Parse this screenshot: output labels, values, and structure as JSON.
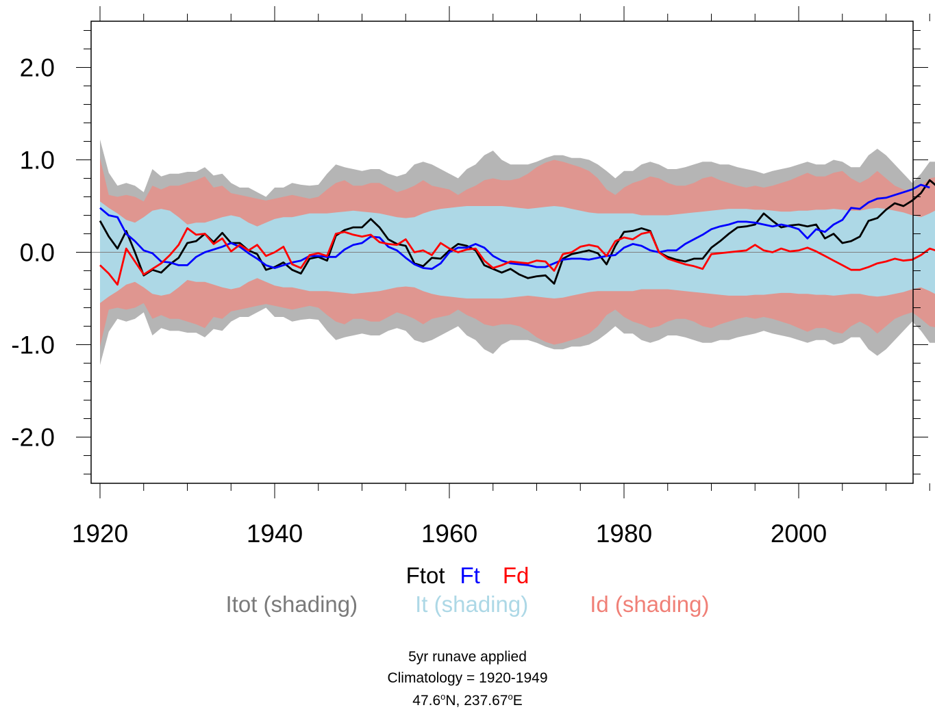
{
  "chart_data": {
    "type": "line",
    "x_start": 1920,
    "x_end": 2012,
    "xlim": [
      1920,
      2015
    ],
    "ylim": [
      -2.5,
      2.5
    ],
    "xticks": [
      1920,
      1940,
      1960,
      1980,
      2000
    ],
    "xtick_labels": [
      "1920",
      "1940",
      "1960",
      "1980",
      "2000"
    ],
    "yticks": [
      2.0,
      1.0,
      0.0,
      -1.0,
      -2.0
    ],
    "ytick_labels": [
      "2.0",
      "1.0",
      "0.0",
      "-1.0",
      "-2.0"
    ],
    "zero_line": 0.0,
    "series": [
      {
        "name": "Ftot",
        "color": "#000000",
        "values": [
          0.34,
          0.17,
          0.04,
          0.23,
          0.0,
          -0.25,
          -0.19,
          -0.22,
          -0.13,
          -0.06,
          0.1,
          0.12,
          0.2,
          0.11,
          0.21,
          0.1,
          0.1,
          0.02,
          -0.02,
          -0.19,
          -0.16,
          -0.11,
          -0.19,
          -0.23,
          -0.07,
          -0.05,
          -0.09,
          0.18,
          0.24,
          0.27,
          0.27,
          0.36,
          0.27,
          0.14,
          0.09,
          0.07,
          -0.12,
          -0.15,
          -0.06,
          -0.07,
          0.02,
          0.09,
          0.07,
          0.02,
          -0.14,
          -0.18,
          -0.22,
          -0.18,
          -0.24,
          -0.28,
          -0.26,
          -0.25,
          -0.34,
          -0.07,
          -0.02,
          0.0,
          0.02,
          -0.01,
          -0.13,
          0.07,
          0.22,
          0.23,
          0.26,
          0.23,
          0.0,
          -0.05,
          -0.08,
          -0.1,
          -0.07,
          -0.07,
          0.05,
          0.12,
          0.2,
          0.27,
          0.28,
          0.3,
          0.42,
          0.34,
          0.27,
          0.29,
          0.3,
          0.28,
          0.3,
          0.15,
          0.2,
          0.1,
          0.12,
          0.17,
          0.34,
          0.37,
          0.46,
          0.53,
          0.5,
          0.56,
          0.64,
          0.78,
          0.7
        ]
      },
      {
        "name": "Ft",
        "color": "#0000ff",
        "values": [
          0.48,
          0.4,
          0.38,
          0.2,
          0.12,
          0.02,
          -0.01,
          -0.1,
          -0.11,
          -0.14,
          -0.14,
          -0.05,
          0.0,
          0.03,
          0.06,
          0.1,
          0.06,
          -0.01,
          -0.07,
          -0.14,
          -0.17,
          -0.14,
          -0.11,
          -0.09,
          -0.04,
          -0.04,
          -0.05,
          -0.05,
          0.03,
          0.08,
          0.1,
          0.17,
          0.16,
          0.06,
          0.02,
          -0.06,
          -0.13,
          -0.17,
          -0.18,
          -0.12,
          0.0,
          0.05,
          0.05,
          0.09,
          0.05,
          -0.04,
          -0.09,
          -0.12,
          -0.13,
          -0.14,
          -0.16,
          -0.16,
          -0.12,
          -0.08,
          -0.07,
          -0.07,
          -0.08,
          -0.06,
          -0.04,
          -0.03,
          0.05,
          0.09,
          0.07,
          0.02,
          0.0,
          0.02,
          0.02,
          0.09,
          0.14,
          0.19,
          0.25,
          0.28,
          0.3,
          0.33,
          0.33,
          0.32,
          0.3,
          0.28,
          0.3,
          0.28,
          0.25,
          0.15,
          0.25,
          0.22,
          0.3,
          0.35,
          0.48,
          0.47,
          0.54,
          0.58,
          0.59,
          0.62,
          0.65,
          0.68,
          0.73,
          0.7
        ]
      },
      {
        "name": "Fd",
        "color": "#ff0000",
        "values": [
          -0.14,
          -0.23,
          -0.35,
          0.04,
          -0.1,
          -0.24,
          -0.18,
          -0.12,
          -0.03,
          0.08,
          0.26,
          0.19,
          0.2,
          0.09,
          0.15,
          0.01,
          0.08,
          0.02,
          0.08,
          -0.04,
          0.0,
          0.06,
          -0.13,
          -0.17,
          -0.03,
          -0.01,
          -0.04,
          0.2,
          0.22,
          0.19,
          0.17,
          0.19,
          0.11,
          0.09,
          0.08,
          0.14,
          0.0,
          0.02,
          -0.03,
          0.1,
          0.04,
          0.0,
          0.03,
          0.04,
          -0.09,
          -0.17,
          -0.14,
          -0.1,
          -0.11,
          -0.12,
          -0.09,
          -0.1,
          -0.2,
          -0.02,
          0.0,
          0.06,
          0.08,
          0.06,
          -0.04,
          0.12,
          0.16,
          0.14,
          0.2,
          0.22,
          0.0,
          -0.07,
          -0.1,
          -0.13,
          -0.15,
          -0.18,
          -0.02,
          -0.01,
          0.0,
          0.01,
          0.02,
          0.08,
          0.02,
          0.0,
          0.04,
          0.01,
          0.02,
          0.05,
          0.01,
          -0.04,
          -0.09,
          -0.14,
          -0.19,
          -0.19,
          -0.16,
          -0.12,
          -0.1,
          -0.07,
          -0.09,
          -0.08,
          -0.03,
          0.04,
          0.01
        ]
      }
    ],
    "bands": [
      {
        "name": "Itot (shading)",
        "color": "#b5b5b5",
        "upper": [
          1.22,
          0.86,
          0.72,
          0.75,
          0.72,
          0.65,
          0.9,
          0.82,
          0.85,
          0.85,
          0.87,
          0.87,
          0.92,
          0.83,
          0.85,
          0.75,
          0.7,
          0.7,
          0.65,
          0.6,
          0.7,
          0.7,
          0.75,
          0.73,
          0.72,
          0.73,
          0.85,
          0.95,
          0.92,
          0.9,
          0.88,
          0.9,
          0.9,
          0.85,
          0.82,
          0.85,
          0.95,
          0.98,
          0.95,
          0.9,
          0.85,
          0.8,
          0.9,
          0.95,
          1.05,
          1.1,
          1.0,
          0.95,
          0.95,
          0.95,
          0.98,
          1.02,
          1.05,
          1.05,
          1.02,
          1.02,
          1.0,
          0.95,
          0.88,
          0.8,
          0.88,
          0.88,
          0.95,
          0.98,
          0.95,
          0.9,
          0.9,
          0.92,
          0.95,
          0.98,
          0.98,
          0.95,
          0.95,
          0.92,
          0.9,
          0.88,
          0.85,
          0.88,
          0.9,
          0.92,
          0.95,
          0.98,
          0.95,
          0.95,
          1.0,
          0.98,
          0.92,
          0.92,
          1.05,
          1.12,
          1.05,
          0.95,
          0.85,
          0.75,
          0.85,
          0.98,
          0.98
        ],
        "lower": [
          -1.22,
          -0.86,
          -0.72,
          -0.75,
          -0.72,
          -0.65,
          -0.9,
          -0.82,
          -0.85,
          -0.85,
          -0.87,
          -0.87,
          -0.92,
          -0.83,
          -0.85,
          -0.75,
          -0.7,
          -0.7,
          -0.65,
          -0.6,
          -0.7,
          -0.7,
          -0.75,
          -0.73,
          -0.72,
          -0.73,
          -0.85,
          -0.95,
          -0.92,
          -0.9,
          -0.88,
          -0.9,
          -0.9,
          -0.85,
          -0.82,
          -0.85,
          -0.95,
          -0.98,
          -0.95,
          -0.9,
          -0.85,
          -0.8,
          -0.9,
          -0.95,
          -1.05,
          -1.1,
          -1.0,
          -0.95,
          -0.95,
          -0.95,
          -0.98,
          -1.02,
          -1.05,
          -1.05,
          -1.02,
          -1.02,
          -1.0,
          -0.95,
          -0.88,
          -0.8,
          -0.88,
          -0.88,
          -0.95,
          -0.98,
          -0.95,
          -0.9,
          -0.9,
          -0.92,
          -0.95,
          -0.98,
          -0.98,
          -0.95,
          -0.95,
          -0.92,
          -0.9,
          -0.88,
          -0.85,
          -0.88,
          -0.9,
          -0.92,
          -0.95,
          -0.98,
          -0.95,
          -0.95,
          -1.0,
          -0.98,
          -0.92,
          -0.92,
          -1.05,
          -1.12,
          -1.05,
          -0.95,
          -0.85,
          -0.75,
          -0.85,
          -0.98,
          -0.98
        ]
      },
      {
        "name": "Id (shading)",
        "color": "#df9690",
        "upper": [
          1.02,
          0.62,
          0.6,
          0.62,
          0.6,
          0.55,
          0.72,
          0.68,
          0.72,
          0.72,
          0.75,
          0.78,
          0.82,
          0.7,
          0.72,
          0.64,
          0.62,
          0.6,
          0.58,
          0.56,
          0.58,
          0.6,
          0.62,
          0.6,
          0.58,
          0.6,
          0.68,
          0.75,
          0.78,
          0.72,
          0.72,
          0.75,
          0.75,
          0.7,
          0.65,
          0.68,
          0.72,
          0.78,
          0.72,
          0.7,
          0.68,
          0.62,
          0.68,
          0.72,
          0.78,
          0.8,
          0.78,
          0.78,
          0.8,
          0.85,
          0.92,
          0.97,
          1.0,
          0.98,
          0.95,
          0.92,
          0.88,
          0.8,
          0.68,
          0.62,
          0.7,
          0.75,
          0.78,
          0.82,
          0.8,
          0.75,
          0.72,
          0.72,
          0.75,
          0.8,
          0.82,
          0.78,
          0.75,
          0.72,
          0.7,
          0.72,
          0.7,
          0.72,
          0.75,
          0.78,
          0.82,
          0.86,
          0.82,
          0.82,
          0.86,
          0.88,
          0.8,
          0.75,
          0.8,
          0.88,
          0.8,
          0.72,
          0.68,
          0.65,
          0.72,
          0.8,
          0.82
        ],
        "lower": [
          -1.02,
          -0.62,
          -0.6,
          -0.62,
          -0.6,
          -0.55,
          -0.72,
          -0.68,
          -0.72,
          -0.72,
          -0.75,
          -0.78,
          -0.82,
          -0.7,
          -0.72,
          -0.64,
          -0.62,
          -0.6,
          -0.58,
          -0.56,
          -0.58,
          -0.6,
          -0.62,
          -0.6,
          -0.58,
          -0.6,
          -0.68,
          -0.75,
          -0.78,
          -0.72,
          -0.72,
          -0.75,
          -0.75,
          -0.7,
          -0.65,
          -0.68,
          -0.72,
          -0.78,
          -0.72,
          -0.7,
          -0.68,
          -0.62,
          -0.68,
          -0.72,
          -0.78,
          -0.8,
          -0.78,
          -0.78,
          -0.8,
          -0.85,
          -0.92,
          -0.97,
          -1.0,
          -0.98,
          -0.95,
          -0.92,
          -0.88,
          -0.8,
          -0.68,
          -0.62,
          -0.7,
          -0.75,
          -0.78,
          -0.82,
          -0.8,
          -0.75,
          -0.72,
          -0.72,
          -0.75,
          -0.8,
          -0.82,
          -0.78,
          -0.75,
          -0.72,
          -0.7,
          -0.72,
          -0.7,
          -0.72,
          -0.75,
          -0.78,
          -0.82,
          -0.86,
          -0.82,
          -0.82,
          -0.86,
          -0.88,
          -0.8,
          -0.75,
          -0.8,
          -0.88,
          -0.8,
          -0.72,
          -0.68,
          -0.65,
          -0.72,
          -0.8,
          -0.82
        ]
      },
      {
        "name": "It (shading)",
        "color": "#add8e6",
        "upper": [
          0.55,
          0.48,
          0.42,
          0.35,
          0.32,
          0.38,
          0.45,
          0.47,
          0.45,
          0.38,
          0.3,
          0.32,
          0.32,
          0.35,
          0.38,
          0.4,
          0.38,
          0.32,
          0.28,
          0.32,
          0.36,
          0.38,
          0.38,
          0.4,
          0.42,
          0.42,
          0.42,
          0.43,
          0.44,
          0.45,
          0.44,
          0.43,
          0.42,
          0.4,
          0.38,
          0.37,
          0.38,
          0.42,
          0.45,
          0.47,
          0.48,
          0.49,
          0.5,
          0.5,
          0.5,
          0.5,
          0.5,
          0.49,
          0.48,
          0.47,
          0.48,
          0.49,
          0.5,
          0.49,
          0.47,
          0.45,
          0.43,
          0.42,
          0.42,
          0.42,
          0.42,
          0.42,
          0.4,
          0.4,
          0.4,
          0.4,
          0.41,
          0.42,
          0.43,
          0.44,
          0.45,
          0.46,
          0.47,
          0.47,
          0.47,
          0.46,
          0.46,
          0.45,
          0.44,
          0.44,
          0.45,
          0.45,
          0.46,
          0.46,
          0.47,
          0.46,
          0.45,
          0.45,
          0.47,
          0.48,
          0.47,
          0.45,
          0.43,
          0.4,
          0.38,
          0.42,
          0.47
        ],
        "lower": [
          -0.55,
          -0.48,
          -0.42,
          -0.35,
          -0.32,
          -0.38,
          -0.45,
          -0.47,
          -0.45,
          -0.38,
          -0.3,
          -0.32,
          -0.32,
          -0.35,
          -0.38,
          -0.4,
          -0.38,
          -0.32,
          -0.28,
          -0.32,
          -0.36,
          -0.38,
          -0.38,
          -0.4,
          -0.42,
          -0.42,
          -0.42,
          -0.43,
          -0.44,
          -0.45,
          -0.44,
          -0.43,
          -0.42,
          -0.4,
          -0.38,
          -0.37,
          -0.38,
          -0.42,
          -0.45,
          -0.47,
          -0.48,
          -0.49,
          -0.5,
          -0.5,
          -0.5,
          -0.5,
          -0.5,
          -0.49,
          -0.48,
          -0.47,
          -0.48,
          -0.49,
          -0.5,
          -0.49,
          -0.47,
          -0.45,
          -0.43,
          -0.42,
          -0.42,
          -0.42,
          -0.42,
          -0.42,
          -0.4,
          -0.4,
          -0.4,
          -0.4,
          -0.41,
          -0.42,
          -0.43,
          -0.44,
          -0.45,
          -0.46,
          -0.47,
          -0.47,
          -0.47,
          -0.46,
          -0.46,
          -0.45,
          -0.44,
          -0.44,
          -0.45,
          -0.45,
          -0.46,
          -0.46,
          -0.47,
          -0.46,
          -0.45,
          -0.45,
          -0.47,
          -0.48,
          -0.47,
          -0.45,
          -0.43,
          -0.4,
          -0.38,
          -0.42,
          -0.47
        ]
      }
    ]
  },
  "legend": {
    "lines": [
      {
        "label": "Ftot",
        "color": "#000000"
      },
      {
        "label": "Ft",
        "color": "#0000ff"
      },
      {
        "label": "Fd",
        "color": "#ff0000"
      }
    ],
    "shadings": [
      {
        "label": "Itot (shading)",
        "color": "#7a7a7a"
      },
      {
        "label": "It (shading)",
        "color": "#add8e6"
      },
      {
        "label": "Id (shading)",
        "color": "#f08077"
      }
    ]
  },
  "footer": {
    "line1": "5yr runave applied",
    "line2": "Climatology = 1920-1949",
    "lat_value": "47.6",
    "lat_unit": "N, ",
    "lon_value": "237.67",
    "lon_unit": "E",
    "degree_mark": "o"
  }
}
